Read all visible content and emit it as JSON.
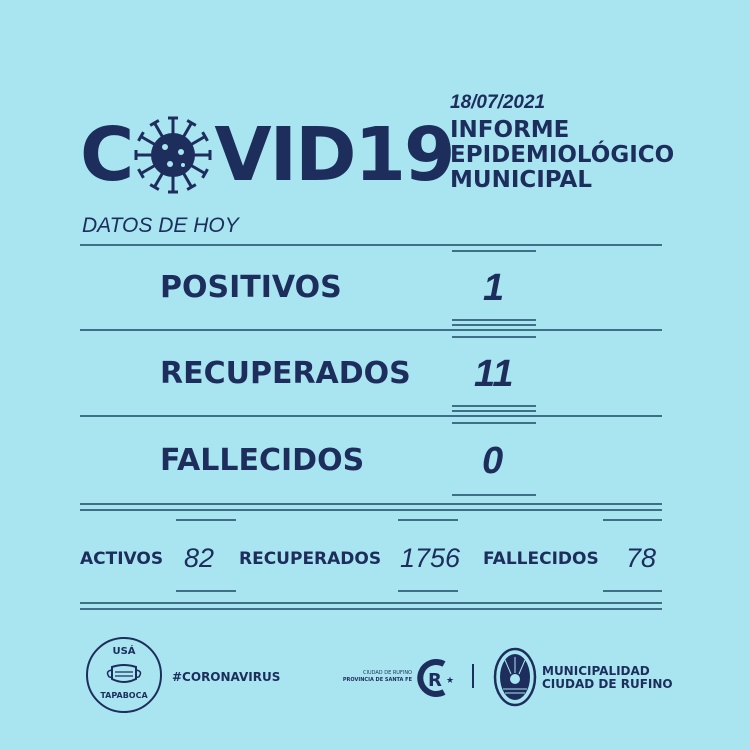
{
  "header": {
    "title_prefix": "C",
    "title_suffix": "VID19",
    "virus_icon": "coronavirus-icon",
    "date": "18/07/2021",
    "subtitle_lines": [
      "INFORME",
      "EPIDEMIOLÓGICO",
      "MUNICIPAL"
    ],
    "section_label": "DATOS DE HOY"
  },
  "today": [
    {
      "label": "POSITIVOS",
      "value": "1"
    },
    {
      "label": "RECUPERADOS",
      "value": "11"
    },
    {
      "label": "FALLECIDOS",
      "value": "0"
    }
  ],
  "totals": [
    {
      "label": "ACTIVOS",
      "value": "82"
    },
    {
      "label": "RECUPERADOS",
      "value": "1756"
    },
    {
      "label": "FALLECIDOS",
      "value": "78"
    }
  ],
  "footer": {
    "mask_badge_top": "USÁ",
    "mask_badge_bottom": "TAPABOCA",
    "hashtag": "#CORONAVIRUS",
    "city_small_1": "CIUDAD DE RUFINO",
    "city_small_2": "PROVINCIA DE SANTA FE",
    "muni_line1": "MUNICIPALIDAD",
    "muni_line2": "CIUDAD DE RUFINO"
  },
  "colors": {
    "background": "#a9e5f0",
    "text": "#1d2d5c",
    "lines": "#3f6f86"
  }
}
